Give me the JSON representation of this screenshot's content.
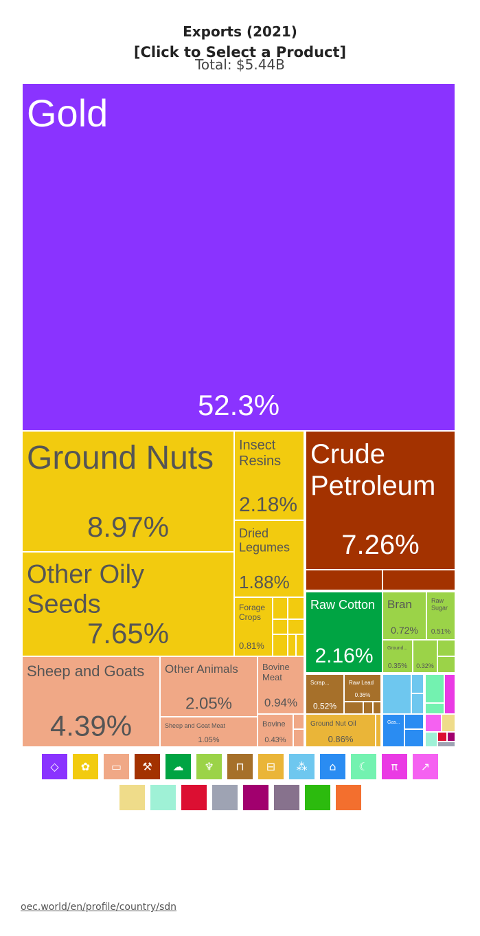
{
  "header": {
    "title": "Exports (2021)",
    "subtitle": "[Click to Select a Product]",
    "total": "Total: $5.44B"
  },
  "footer": {
    "link": "oec.world/en/profile/country/sdn"
  },
  "chart_data": {
    "type": "treemap",
    "title": "Exports (2021)",
    "total": "Total: $5.44B",
    "tiles": [
      {
        "name": "Gold",
        "value": 52.3,
        "color": "#8a33ff"
      },
      {
        "name": "Ground Nuts",
        "value": 8.97,
        "color": "#f2cb0f"
      },
      {
        "name": "Other Oily Seeds",
        "value": 7.65,
        "color": "#f2cb0f"
      },
      {
        "name": "Insect Resins",
        "value": 2.18,
        "color": "#f2cb0f"
      },
      {
        "name": "Dried Legumes",
        "value": 1.88,
        "color": "#f2cb0f"
      },
      {
        "name": "Forage Crops",
        "value": 0.81,
        "color": "#f2cb0f"
      },
      {
        "name": "Crude Petroleum",
        "value": 7.26,
        "color": "#a33200"
      },
      {
        "name": "Sheep and Goats",
        "value": 4.39,
        "color": "#f0a886"
      },
      {
        "name": "Other Animals",
        "value": 2.05,
        "color": "#f0a886"
      },
      {
        "name": "Bovine Meat",
        "value": 0.94,
        "color": "#f0a886"
      },
      {
        "name": "Sheep and Goat Meat",
        "value": 1.05,
        "color": "#f0a886"
      },
      {
        "name": "Bovine",
        "value": 0.43,
        "color": "#f0a886"
      },
      {
        "name": "Raw Cotton",
        "value": 2.16,
        "color": "#00a443"
      },
      {
        "name": "Bran",
        "value": 0.72,
        "color": "#9bd348"
      },
      {
        "name": "Raw Sugar",
        "value": 0.51,
        "color": "#9bd348"
      },
      {
        "name": "Ground...",
        "value": 0.35,
        "color": "#9bd348"
      },
      {
        "name": "",
        "value": 0.32,
        "color": "#9bd348"
      },
      {
        "name": "Scrap...",
        "value": 0.52,
        "color": "#a6702a"
      },
      {
        "name": "Raw Lead",
        "value": 0.36,
        "color": "#a6702a"
      },
      {
        "name": "Ground Nut Oil",
        "value": 0.86,
        "color": "#eab538"
      },
      {
        "name": "Gas...",
        "value": null,
        "color": "#2a8cf2"
      }
    ],
    "legend_icons": [
      {
        "icon": "diamond-icon",
        "color": "#8a33ff"
      },
      {
        "icon": "plant-icon",
        "color": "#f2cb0f"
      },
      {
        "icon": "meat-icon",
        "color": "#f0a886"
      },
      {
        "icon": "mineral-icon",
        "color": "#a33200"
      },
      {
        "icon": "textile-icon",
        "color": "#00a443"
      },
      {
        "icon": "wheat-icon",
        "color": "#9bd348"
      },
      {
        "icon": "metal-icon",
        "color": "#a6702a"
      },
      {
        "icon": "food-icon",
        "color": "#eab538"
      },
      {
        "icon": "machine-icon",
        "color": "#6ec7ef"
      },
      {
        "icon": "chemical-icon",
        "color": "#2a8cf2"
      },
      {
        "icon": "animal-hide-icon",
        "color": "#73f2b0"
      },
      {
        "icon": "stone-icon",
        "color": "#ea3ae4"
      },
      {
        "icon": "transport-icon",
        "color": "#f561f1"
      },
      {
        "icon": "paper-icon",
        "color": "#efdc8a"
      },
      {
        "icon": "plastics-icon",
        "color": "#9ff1d6"
      },
      {
        "icon": "arms-icon",
        "color": "#dc0f32"
      },
      {
        "icon": "misc-icon",
        "color": "#9ea3b3"
      },
      {
        "icon": "instrument-icon",
        "color": "#a1006e"
      },
      {
        "icon": "wood-icon",
        "color": "#87728d"
      },
      {
        "icon": "vegetable-icon",
        "color": "#2cbb0e"
      },
      {
        "icon": "footwear-icon",
        "color": "#f36f2e"
      }
    ]
  }
}
